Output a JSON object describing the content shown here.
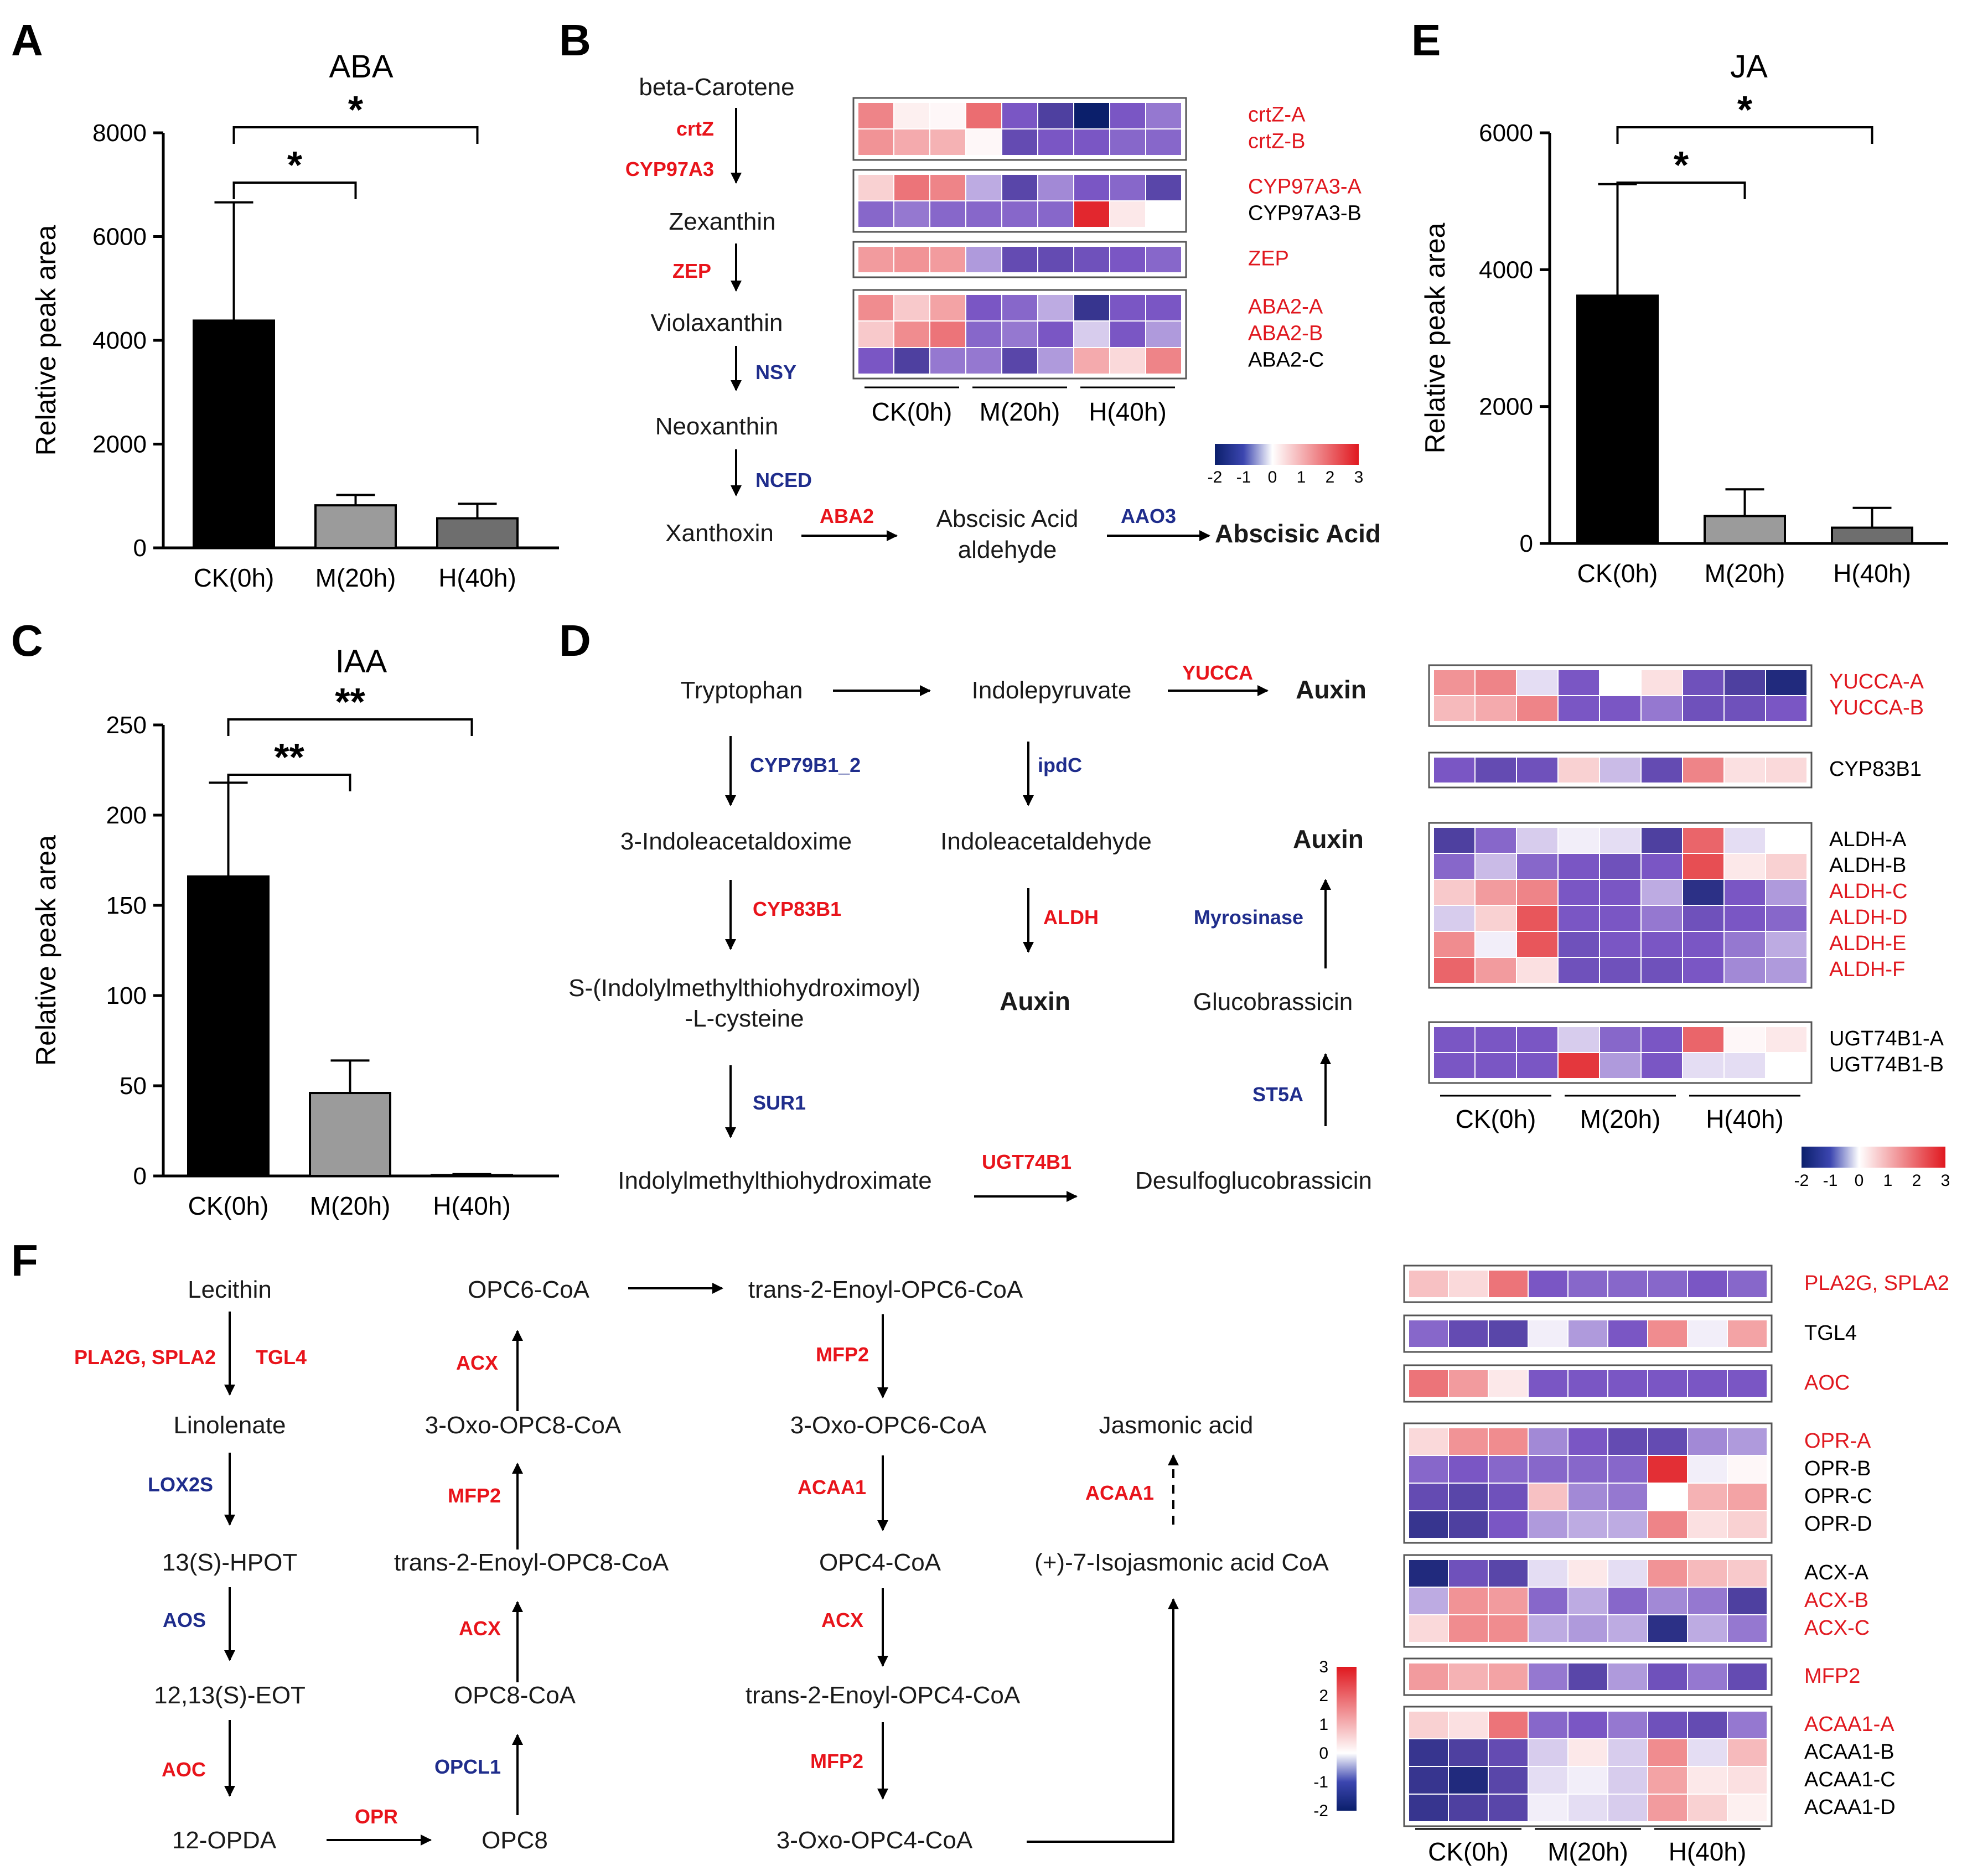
{
  "colors": {
    "up": "#e0181f",
    "down": "#0b1f6b",
    "enzyme_up": "#e8141b",
    "enzyme_down": "#1f2d8c",
    "text": "#1a1a1a"
  },
  "panel_labels": {
    "A": "A",
    "B": "B",
    "C": "C",
    "D": "D",
    "E": "E",
    "F": "F"
  },
  "chart_data": [
    {
      "id": "A",
      "type": "bar",
      "title": "ABA",
      "categories": [
        "CK(0h)",
        "M(20h)",
        "H(40h)"
      ],
      "values": [
        4380,
        820,
        570
      ],
      "errors": [
        2280,
        200,
        280
      ],
      "ylabel": "Relative peak area",
      "ylim": [
        0,
        8000
      ],
      "yticks": [
        0,
        2000,
        4000,
        6000,
        8000
      ],
      "bar_colors": [
        "#000000",
        "#9b9b9b",
        "#6e6e6e"
      ],
      "significance": [
        {
          "from": 0,
          "to": 1,
          "label": "*"
        },
        {
          "from": 0,
          "to": 2,
          "label": "*"
        }
      ]
    },
    {
      "id": "C",
      "type": "bar",
      "title": "IAA",
      "categories": [
        "CK(0h)",
        "M(20h)",
        "H(40h)"
      ],
      "values": [
        166,
        46,
        0.5
      ],
      "errors": [
        52,
        18,
        0.5
      ],
      "ylabel": "Relative peak area",
      "ylim": [
        0,
        250
      ],
      "yticks": [
        0,
        50,
        100,
        150,
        200,
        250
      ],
      "bar_colors": [
        "#000000",
        "#9b9b9b",
        "#6e6e6e"
      ],
      "significance": [
        {
          "from": 0,
          "to": 1,
          "label": "**"
        },
        {
          "from": 0,
          "to": 2,
          "label": "**"
        }
      ]
    },
    {
      "id": "E",
      "type": "bar",
      "title": "JA",
      "categories": [
        "CK(0h)",
        "M(20h)",
        "H(40h)"
      ],
      "values": [
        3620,
        400,
        230
      ],
      "errors": [
        1630,
        390,
        290
      ],
      "ylabel": "Relative peak area",
      "ylim": [
        0,
        6000
      ],
      "yticks": [
        0,
        2000,
        4000,
        6000
      ],
      "bar_colors": [
        "#000000",
        "#9b9b9b",
        "#6e6e6e"
      ],
      "significance": [
        {
          "from": 0,
          "to": 1,
          "label": "*"
        },
        {
          "from": 0,
          "to": 2,
          "label": "*"
        }
      ]
    },
    {
      "id": "B-heatmap",
      "type": "heatmap",
      "columns": [
        "CK(0h)",
        "M(20h)",
        "H(40h)"
      ],
      "colorbar": {
        "ticks": [
          -2,
          -1,
          0,
          1,
          2,
          3
        ]
      },
      "groups": [
        {
          "rows": [
            {
              "label": "crtZ-A",
              "highlight": true,
              "values": [
                1.6,
                0.2,
                0.1,
                1.9,
                -1.0,
                -1.4,
                -2.0,
                -1.0,
                -0.8
              ]
            },
            {
              "label": "crtZ-B",
              "highlight": true,
              "values": [
                1.4,
                1.1,
                1.0,
                0.1,
                -1.2,
                -1.0,
                -1.0,
                -0.9,
                -0.9
              ]
            }
          ]
        },
        {
          "rows": [
            {
              "label": "CYP97A3-A",
              "highlight": true,
              "values": [
                0.6,
                1.8,
                1.6,
                -0.5,
                -1.3,
                -0.7,
                -1.0,
                -0.9,
                -1.3
              ]
            },
            {
              "label": "CYP97A3-B",
              "highlight": false,
              "values": [
                -0.9,
                -0.8,
                -0.9,
                -0.9,
                -0.9,
                -0.9,
                2.8,
                0.3,
                0.0
              ]
            }
          ]
        },
        {
          "rows": [
            {
              "label": "ZEP",
              "highlight": true,
              "values": [
                1.3,
                1.4,
                1.3,
                -0.6,
                -1.2,
                -1.2,
                -1.1,
                -1.0,
                -0.9
              ]
            }
          ]
        },
        {
          "rows": [
            {
              "label": "ABA2-A",
              "highlight": true,
              "values": [
                1.5,
                0.7,
                1.2,
                -1.0,
                -0.9,
                -0.5,
                -1.6,
                -1.0,
                -1.0
              ]
            },
            {
              "label": "ABA2-B",
              "highlight": true,
              "values": [
                0.7,
                1.5,
                1.8,
                -0.9,
                -0.8,
                -1.0,
                -0.3,
                -1.0,
                -0.6
              ]
            },
            {
              "label": "ABA2-C",
              "highlight": false,
              "values": [
                -1.0,
                -1.4,
                -0.8,
                -0.8,
                -1.3,
                -0.6,
                1.1,
                0.5,
                1.6
              ]
            }
          ]
        }
      ]
    },
    {
      "id": "D-heatmap",
      "type": "heatmap",
      "columns": [
        "CK(0h)",
        "M(20h)",
        "H(40h)"
      ],
      "colorbar": {
        "ticks": [
          -2,
          -1,
          0,
          1,
          2,
          3
        ]
      },
      "groups": [
        {
          "rows": [
            {
              "label": "YUCCA-A",
              "highlight": true,
              "values": [
                1.4,
                1.6,
                -0.2,
                -1.0,
                0.0,
                0.4,
                -1.1,
                -1.4,
                -1.8
              ]
            },
            {
              "label": "YUCCA-B",
              "highlight": true,
              "values": [
                0.9,
                1.1,
                1.6,
                -1.0,
                -1.0,
                -0.8,
                -1.1,
                -1.1,
                -1.0
              ]
            }
          ]
        },
        {
          "rows": [
            {
              "label": "CYP83B1",
              "highlight": false,
              "values": [
                -1.0,
                -1.2,
                -1.1,
                0.6,
                -0.4,
                -1.2,
                1.6,
                0.4,
                0.5
              ]
            }
          ]
        },
        {
          "rows": [
            {
              "label": "ALDH-A",
              "highlight": false,
              "values": [
                -1.4,
                -0.9,
                -0.3,
                -0.1,
                -0.2,
                -1.4,
                2.0,
                -0.2,
                0.0
              ]
            },
            {
              "label": "ALDH-B",
              "highlight": false,
              "values": [
                -0.9,
                -0.4,
                -0.9,
                -1.0,
                -1.1,
                -1.0,
                2.3,
                0.3,
                0.6
              ]
            },
            {
              "label": "ALDH-C",
              "highlight": true,
              "values": [
                0.7,
                1.3,
                1.6,
                -1.0,
                -1.0,
                -0.5,
                -1.7,
                -1.0,
                -0.6
              ]
            },
            {
              "label": "ALDH-D",
              "highlight": true,
              "values": [
                -0.3,
                0.6,
                2.2,
                -1.0,
                -1.0,
                -0.8,
                -1.1,
                -1.0,
                -0.9
              ]
            },
            {
              "label": "ALDH-E",
              "highlight": true,
              "values": [
                1.5,
                -0.1,
                2.2,
                -1.1,
                -1.0,
                -1.0,
                -1.0,
                -0.8,
                -0.5
              ]
            },
            {
              "label": "ALDH-F",
              "highlight": true,
              "values": [
                2.0,
                1.3,
                0.4,
                -1.1,
                -1.1,
                -1.1,
                -1.0,
                -0.7,
                -0.6
              ]
            }
          ]
        },
        {
          "rows": [
            {
              "label": "UGT74B1-A",
              "highlight": false,
              "values": [
                -1.0,
                -1.0,
                -1.0,
                -0.3,
                -0.9,
                -1.0,
                2.0,
                0.1,
                0.3
              ]
            },
            {
              "label": "UGT74B1-B",
              "highlight": false,
              "values": [
                -1.0,
                -1.0,
                -1.0,
                2.6,
                -0.6,
                -1.0,
                -0.2,
                -0.2,
                0.0
              ]
            }
          ]
        }
      ]
    },
    {
      "id": "F-heatmap",
      "type": "heatmap",
      "columns": [
        "CK(0h)",
        "M(20h)",
        "H(40h)"
      ],
      "colorbar": {
        "ticks": [
          -2,
          -1,
          0,
          1,
          2,
          3
        ]
      },
      "groups": [
        {
          "rows": [
            {
              "label": "PLA2G, SPLA2",
              "highlight": true,
              "values": [
                0.8,
                0.5,
                1.8,
                -1.0,
                -0.9,
                -0.9,
                -0.9,
                -1.0,
                -0.9
              ]
            }
          ]
        },
        {
          "rows": [
            {
              "label": "TGL4",
              "highlight": false,
              "values": [
                -0.9,
                -1.2,
                -1.3,
                -0.1,
                -0.6,
                -1.0,
                1.5,
                -0.1,
                1.2
              ]
            }
          ]
        },
        {
          "rows": [
            {
              "label": "AOC",
              "highlight": true,
              "values": [
                1.8,
                1.3,
                0.3,
                -1.0,
                -1.0,
                -1.0,
                -1.0,
                -1.0,
                -1.0
              ]
            }
          ]
        },
        {
          "rows": [
            {
              "label": "OPR-A",
              "highlight": true,
              "values": [
                0.5,
                1.4,
                1.5,
                -0.7,
                -1.0,
                -1.2,
                -1.2,
                -0.7,
                -0.6
              ]
            },
            {
              "label": "OPR-B",
              "highlight": false,
              "values": [
                -0.9,
                -1.0,
                -0.9,
                -0.9,
                -0.9,
                -0.9,
                2.7,
                -0.1,
                0.1
              ]
            },
            {
              "label": "OPR-C",
              "highlight": false,
              "values": [
                -1.2,
                -1.3,
                -1.1,
                0.8,
                -0.7,
                -0.8,
                0.0,
                1.0,
                1.2
              ]
            },
            {
              "label": "OPR-D",
              "highlight": false,
              "values": [
                -1.6,
                -1.4,
                -1.0,
                -0.6,
                -0.5,
                -0.5,
                1.6,
                0.4,
                0.6
              ]
            }
          ]
        },
        {
          "rows": [
            {
              "label": "ACX-A",
              "highlight": false,
              "values": [
                -1.8,
                -1.1,
                -1.3,
                -0.2,
                0.3,
                -0.2,
                1.4,
                0.9,
                0.7
              ]
            },
            {
              "label": "ACX-B",
              "highlight": true,
              "values": [
                -0.5,
                1.4,
                1.3,
                -0.9,
                -0.5,
                -0.9,
                -0.7,
                -0.8,
                -1.4
              ]
            },
            {
              "label": "ACX-C",
              "highlight": true,
              "values": [
                0.5,
                1.5,
                1.5,
                -0.5,
                -0.6,
                -0.5,
                -1.7,
                -0.5,
                -0.8
              ]
            }
          ]
        },
        {
          "rows": [
            {
              "label": "MFP2",
              "highlight": true,
              "values": [
                1.3,
                1.0,
                1.2,
                -0.8,
                -1.3,
                -0.6,
                -1.1,
                -0.8,
                -1.2
              ]
            }
          ]
        },
        {
          "rows": [
            {
              "label": "ACAA1-A",
              "highlight": true,
              "values": [
                0.6,
                0.4,
                1.8,
                -0.9,
                -1.0,
                -0.8,
                -1.1,
                -1.2,
                -0.8
              ]
            },
            {
              "label": "ACAA1-B",
              "highlight": false,
              "values": [
                -1.6,
                -1.4,
                -1.2,
                -0.3,
                0.3,
                -0.3,
                1.5,
                -0.2,
                0.9
              ]
            },
            {
              "label": "ACAA1-C",
              "highlight": false,
              "values": [
                -1.6,
                -1.8,
                -1.3,
                -0.2,
                -0.1,
                -0.3,
                1.2,
                0.3,
                0.4
              ]
            },
            {
              "label": "ACAA1-D",
              "highlight": false,
              "values": [
                -1.6,
                -1.4,
                -1.3,
                -0.1,
                -0.2,
                -0.3,
                1.3,
                0.6,
                0.2
              ]
            }
          ]
        }
      ]
    }
  ],
  "pathway_B": {
    "metabolites": [
      "beta-Carotene",
      "Zexanthin",
      "Violaxanthin",
      "Neoxanthin",
      "Xanthoxin",
      "Abscisic Acid",
      "aldehyde",
      "Abscisic Acid"
    ],
    "enzymes": [
      {
        "name": "crtZ",
        "up": true
      },
      {
        "name": "CYP97A3",
        "up": true
      },
      {
        "name": "ZEP",
        "up": true
      },
      {
        "name": "NSY",
        "up": false
      },
      {
        "name": "NCED",
        "up": false
      },
      {
        "name": "ABA2",
        "up": true
      },
      {
        "name": "AAO3",
        "up": false
      }
    ]
  },
  "pathway_D": {
    "metabolites": [
      "Tryptophan",
      "Indolepyruvate",
      "Auxin",
      "3-Indoleacetaldoxime",
      "Indoleacetaldehyde",
      "Auxin",
      "S-(Indolylmethylthiohydroximoyl)",
      "-L-cysteine",
      "Auxin",
      "Glucobrassicin",
      "Indolylmethylthiohydroximate",
      "Desulfoglucobrassicin"
    ],
    "enzymes": [
      {
        "name": "YUCCA",
        "up": true
      },
      {
        "name": "CYP79B1_2",
        "up": false
      },
      {
        "name": "ipdC",
        "up": false
      },
      {
        "name": "CYP83B1",
        "up": true
      },
      {
        "name": "ALDH",
        "up": true
      },
      {
        "name": "Myrosinase",
        "up": false
      },
      {
        "name": "SUR1",
        "up": false
      },
      {
        "name": "ST5A",
        "up": false
      },
      {
        "name": "UGT74B1",
        "up": true
      }
    ]
  },
  "pathway_F": {
    "metabolites": [
      "Lecithin",
      "Linolenate",
      "13(S)-HPOT",
      "12,13(S)-EOT",
      "12-OPDA",
      "OPC8",
      "OPC8-CoA",
      "trans-2-Enoyl-OPC8-CoA",
      "3-Oxo-OPC8-CoA",
      "OPC6-CoA",
      "trans-2-Enoyl-OPC6-CoA",
      "3-Oxo-OPC6-CoA",
      "OPC4-CoA",
      "trans-2-Enoyl-OPC4-CoA",
      "3-Oxo-OPC4-CoA",
      "(+)-7-Isojasmonic acid CoA",
      "Jasmonic acid"
    ],
    "enzymes": [
      {
        "name": "PLA2G, SPLA2",
        "up": true
      },
      {
        "name": "TGL4",
        "up": true
      },
      {
        "name": "LOX2S",
        "up": false
      },
      {
        "name": "AOS",
        "up": false
      },
      {
        "name": "AOC",
        "up": true
      },
      {
        "name": "OPR",
        "up": true
      },
      {
        "name": "OPCL1",
        "up": false
      },
      {
        "name": "ACX",
        "up": true
      },
      {
        "name": "MFP2",
        "up": true
      },
      {
        "name": "ACX",
        "up": true
      },
      {
        "name": "MFP2",
        "up": true
      },
      {
        "name": "ACAA1",
        "up": true
      },
      {
        "name": "ACX",
        "up": true
      },
      {
        "name": "MFP2",
        "up": true
      },
      {
        "name": "ACAA1",
        "up": true
      }
    ]
  }
}
